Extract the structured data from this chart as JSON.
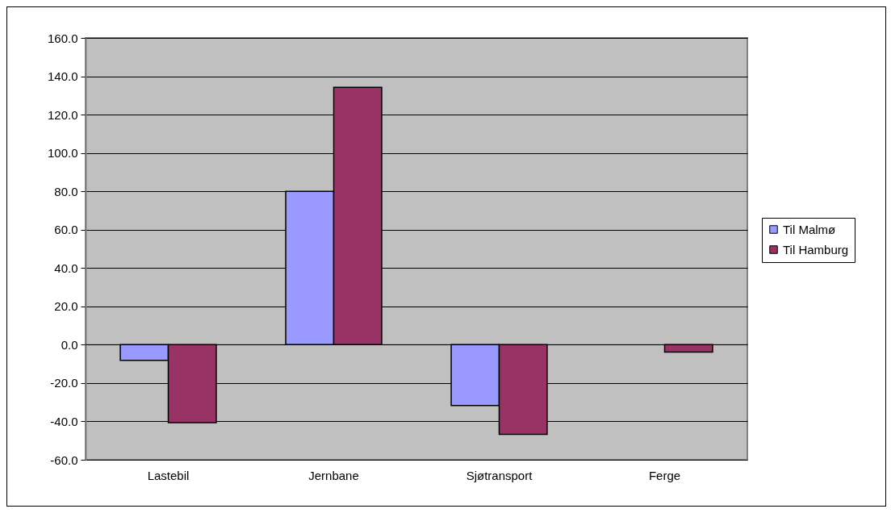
{
  "chart_data": {
    "type": "bar",
    "categories": [
      "Lastebil",
      "Jernbane",
      "Sjøtransport",
      "Ferge"
    ],
    "series": [
      {
        "name": "Til Malmø",
        "color": "#9999ff",
        "values": [
          -8.2,
          80.0,
          -31.7,
          null
        ]
      },
      {
        "name": "Til Hamburg",
        "color": "#993366",
        "values": [
          -40.6,
          134.2,
          -46.8,
          -3.8
        ]
      }
    ],
    "ylim": [
      -60,
      160
    ],
    "yticks": [
      {
        "value": -60,
        "label": "-60.0"
      },
      {
        "value": -40,
        "label": "-40.0"
      },
      {
        "value": -20,
        "label": "-20.0"
      },
      {
        "value": 0,
        "label": "0.0"
      },
      {
        "value": 20,
        "label": "20.0"
      },
      {
        "value": 40,
        "label": "40.0"
      },
      {
        "value": 60,
        "label": "60.0"
      },
      {
        "value": 80,
        "label": "80.0"
      },
      {
        "value": 100,
        "label": "100.0"
      },
      {
        "value": 120,
        "label": "120.0"
      },
      {
        "value": 140,
        "label": "140.0"
      },
      {
        "value": 160,
        "label": "160.0"
      }
    ],
    "grid": "y",
    "legend": "right"
  }
}
